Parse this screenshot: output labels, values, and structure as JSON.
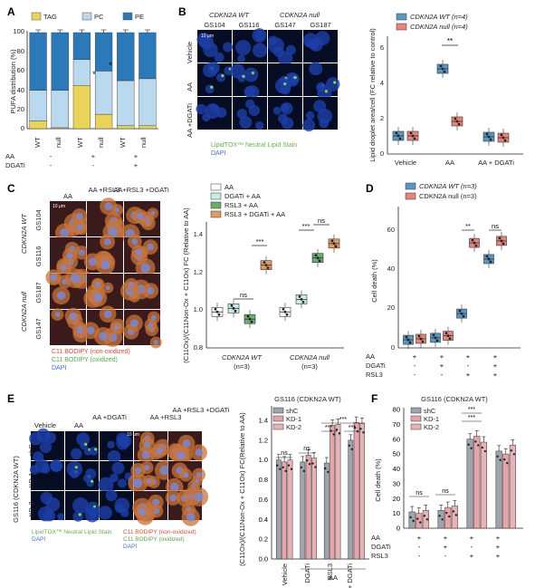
{
  "panels": {
    "A": {
      "label": "A",
      "legend": [
        "TAG",
        "PC",
        "PE"
      ],
      "legend_colors": [
        "#e9d35a",
        "#bad8ee",
        "#2b79b8"
      ],
      "ylabel": "PUFA distribution (%)",
      "xlabels": [
        "WT",
        "null",
        "WT",
        "null",
        "WT",
        "null"
      ],
      "row_labels": [
        "AA",
        "DGATi"
      ],
      "rows": [
        [
          "-",
          "+",
          "+"
        ],
        [
          "-",
          "-",
          "+"
        ]
      ],
      "yticks": [
        "0",
        "20",
        "40",
        "60",
        "80",
        "100"
      ],
      "stars": [
        "*",
        "*"
      ]
    },
    "B": {
      "label": "B",
      "col_headers": [
        "CDKN2A WT",
        "CDKN2A null"
      ],
      "sub_headers": [
        "GS104",
        "GS116",
        "GS147",
        "GS187"
      ],
      "row_labels": [
        "Vehicle",
        "AA",
        "AA +DGATi"
      ],
      "scale": "10 μm",
      "stain1": "LipidTOX™ Neutral Lipid Stain",
      "stain2": "DAPI",
      "legend": [
        "CDKN2A WT (n=4)",
        "CDKN2A null (n=4)"
      ],
      "legend_colors": [
        "#5b96c4",
        "#e8857b"
      ],
      "ylabel": "Lipid droplet area/cell (FC relative to control)",
      "yticks": [
        "0",
        "2",
        "4",
        "6"
      ],
      "xlabels": [
        "Vehicle",
        "AA",
        "AA + DGATi"
      ],
      "sig": "**"
    },
    "C": {
      "label": "C",
      "col_headers": [
        "AA",
        "AA +RSL3",
        "AA+RSL3 +DGATi"
      ],
      "scale": "10 μm",
      "group_labels": [
        "CDKN2A WT",
        "CDKN2A null"
      ],
      "row_labels": [
        "GS104",
        "GS116",
        "GS187",
        "GS147"
      ],
      "stain1": "C11 BODIPY (non-oxidized)",
      "stain2": "C11 BODIPY (oxidized)",
      "stain3": "DAPI",
      "legend": [
        "AA",
        "DGATi + AA",
        "RSL3 + AA",
        "RSL3 + DGATi + AA"
      ],
      "legend_colors": [
        "#ffffff",
        "#ccebe4",
        "#6aad6e",
        "#de9a67"
      ],
      "ylabel": "(C11Ox)/(C11Non-Ox + C11Ox) FC (Relative to AA)",
      "yticks": [
        "0.8",
        "1.0",
        "1.2",
        "1.4"
      ],
      "xlabels": [
        "CDKN2A WT",
        "CDKN2A null"
      ],
      "nlabel": "(n=3)",
      "sig": [
        "ns",
        "***",
        "***",
        "ns"
      ]
    },
    "D": {
      "label": "D",
      "legend": [
        "CDKN2A WT (n=3)",
        "CDKN2A null (n=3)"
      ],
      "legend_colors": [
        "#5b96c4",
        "#e8857b"
      ],
      "ylabel": "Cell death (%)",
      "yticks": [
        "0",
        "20",
        "40",
        "60"
      ],
      "row_labels": [
        "AA",
        "DGATi",
        "RSL3"
      ],
      "rows": [
        [
          "+",
          "+",
          "+",
          "+"
        ],
        [
          "-",
          "+",
          "-",
          "+"
        ],
        [
          "-",
          "-",
          "+",
          "+"
        ]
      ],
      "sig": [
        "**",
        "ns"
      ]
    },
    "E": {
      "label": "E",
      "col_headers": [
        "Vehicle",
        "AA",
        "AA +DGATi",
        "AA +RSL3",
        "AA +RSL3 +DGATi"
      ],
      "scale": "10 μm",
      "side_label": "GS116 (CDKN2A WT)",
      "row_labels": [
        "shC",
        "KD-1",
        "KD-2"
      ],
      "stain1": "LipidTOX™ Neutral Lipid Stain",
      "stain2": "DAPI",
      "stain3": "C11 BODIPY (non-oxidized)",
      "stain4": "C11 BODIPY (oxidized)",
      "stain5": "DAPI",
      "chart_title": "GS116 (CDKN2A WT)",
      "legend": [
        "shC",
        "KD-1",
        "KD-2"
      ],
      "legend_colors": [
        "#9fa4ab",
        "#e7a4aa",
        "#e6b3b6"
      ],
      "ylabel": "(C11Ox)/(C11Non-Ox + C11Ox) FC(Relative to AA)",
      "yticks": [
        "0.0",
        "0.2",
        "0.4",
        "0.6",
        "0.8",
        "1.0",
        "1.2",
        "1.4"
      ],
      "xlabels": [
        "Vehicle",
        "DGATi",
        "RSL3",
        "RSL3 + DGATi"
      ],
      "group": "AA",
      "sig": [
        "ns",
        "ns",
        "***",
        "***",
        "***"
      ]
    },
    "F": {
      "label": "F",
      "chart_title": "GS116 (CDKN2A WT)",
      "legend": [
        "shC",
        "KD-1",
        "KD-2"
      ],
      "legend_colors": [
        "#9fa4ab",
        "#e7a4aa",
        "#e6b3b6"
      ],
      "ylabel": "Cell death (%)",
      "yticks": [
        "0",
        "10",
        "20",
        "30",
        "40",
        "50",
        "60",
        "70",
        "80"
      ],
      "row_labels": [
        "AA",
        "DGATi",
        "RSL3"
      ],
      "rows": [
        [
          "+",
          "+",
          "+",
          "+"
        ],
        [
          "-",
          "+",
          "-",
          "+"
        ],
        [
          "-",
          "-",
          "+",
          "+"
        ]
      ],
      "sig": [
        "ns",
        "ns",
        "***",
        "***"
      ]
    }
  },
  "chart_data": [
    {
      "id": "A",
      "type": "bar",
      "categories": [
        "WT",
        "null",
        "WT",
        "null",
        "WT",
        "null"
      ],
      "series": [
        {
          "name": "TAG",
          "values": [
            8,
            1,
            45,
            15,
            3,
            3
          ]
        },
        {
          "name": "PC",
          "values": [
            32,
            39,
            27,
            45,
            47,
            49
          ]
        },
        {
          "name": "PE",
          "values": [
            60,
            60,
            28,
            40,
            50,
            48
          ]
        }
      ],
      "ylabel": "PUFA distribution (%)",
      "ylim": [
        0,
        100
      ]
    },
    {
      "id": "B",
      "type": "box",
      "categories": [
        "Vehicle",
        "AA",
        "AA + DGATi"
      ],
      "series": [
        {
          "name": "CDKN2A WT (n=4)",
          "values": [
            1.0,
            4.7,
            0.95
          ]
        },
        {
          "name": "CDKN2A null (n=4)",
          "values": [
            1.0,
            1.8,
            0.9
          ]
        }
      ],
      "ylabel": "Lipid droplet area/cell (FC relative to control)",
      "ylim": [
        0,
        6.5
      ]
    },
    {
      "id": "C",
      "type": "box",
      "categories": [
        "CDKN2A WT",
        "CDKN2A null"
      ],
      "series": [
        {
          "name": "AA",
          "values": [
            1.0,
            1.0
          ]
        },
        {
          "name": "DGATi + AA",
          "values": [
            1.02,
            1.07
          ]
        },
        {
          "name": "RSL3 + AA",
          "values": [
            0.96,
            1.3
          ]
        },
        {
          "name": "RSL3 + DGATi + AA",
          "values": [
            1.26,
            1.38
          ]
        }
      ],
      "ylabel": "(C11Ox)/(C11Non-Ox + C11Ox) FC (Relative to AA)",
      "ylim": [
        0.8,
        1.5
      ]
    },
    {
      "id": "D",
      "type": "box",
      "categories": [
        "1",
        "2",
        "3",
        "4"
      ],
      "series": [
        {
          "name": "CDKN2A WT (n=3)",
          "values": [
            4,
            5,
            17,
            44
          ]
        },
        {
          "name": "CDKN2A null (n=3)",
          "values": [
            4.5,
            6,
            52,
            53
          ]
        }
      ],
      "ylabel": "Cell death (%)",
      "ylim": [
        0,
        70
      ]
    },
    {
      "id": "E",
      "type": "bar",
      "categories": [
        "Vehicle",
        "DGATi",
        "RSL3",
        "RSL3 + DGATi"
      ],
      "series": [
        {
          "name": "shC",
          "values": [
            1.0,
            0.98,
            0.97,
            1.2
          ]
        },
        {
          "name": "KD-1",
          "values": [
            0.98,
            1.05,
            1.35,
            1.38
          ]
        },
        {
          "name": "KD-2",
          "values": [
            1.0,
            1.02,
            1.36,
            1.37
          ]
        }
      ],
      "ylabel": "(C11Ox)/(C11Non-Ox + C11Ox) FC(Relative to AA)",
      "ylim": [
        0,
        1.5
      ]
    },
    {
      "id": "F",
      "type": "bar",
      "categories": [
        "1",
        "2",
        "3",
        "4"
      ],
      "series": [
        {
          "name": "shC",
          "values": [
            11,
            12,
            60,
            52
          ]
        },
        {
          "name": "KD-1",
          "values": [
            10,
            14,
            62,
            50
          ]
        },
        {
          "name": "KD-2",
          "values": [
            12,
            15,
            58,
            56
          ]
        }
      ],
      "ylabel": "Cell death (%)",
      "ylim": [
        0,
        80
      ]
    }
  ]
}
